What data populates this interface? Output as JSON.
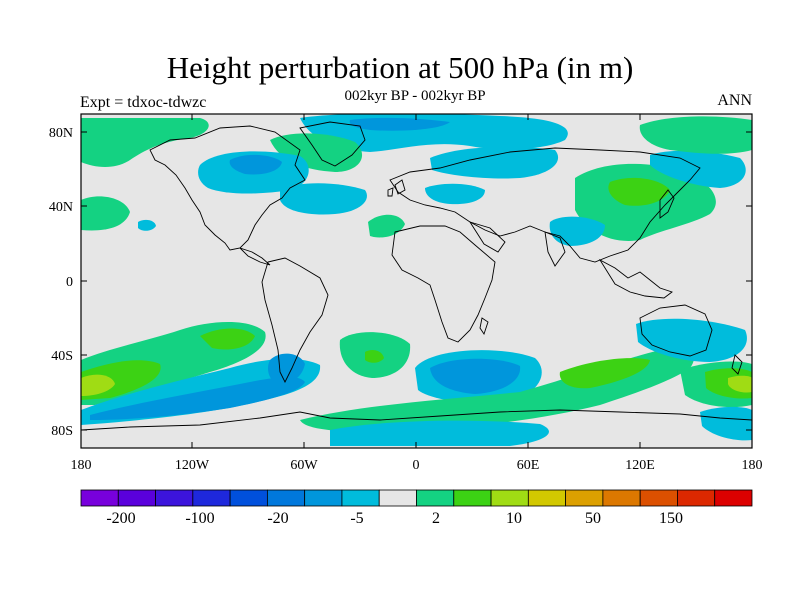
{
  "map": {
    "title": "Height perturbation at 500 hPa (in m)",
    "subtitle": "002kyr BP - 002kyr BP",
    "left_label": "Expt = tdxoc-tdwzc",
    "right_label": "ANN",
    "lat_ticks": [
      "80N",
      "40N",
      "0",
      "40S",
      "80S"
    ],
    "lon_ticks": [
      "180",
      "120W",
      "60W",
      "0",
      "60E",
      "120E",
      "180"
    ],
    "colors": {
      "background": "#e6e6e6",
      "coast": "#000000",
      "neg_light": "#00bcdc",
      "neg_mid": "#0096dc",
      "pos_light": "#14d282",
      "pos_mid": "#3cd214",
      "pos_high": "#a0dc14"
    }
  },
  "colorbar": {
    "colors": [
      "#7800dc",
      "#5a00dc",
      "#3c14dc",
      "#1e28dc",
      "#0050dc",
      "#0078dc",
      "#0096dc",
      "#00bcdc",
      "#e6e6e6",
      "#14d282",
      "#3cd214",
      "#a0dc14",
      "#d2c800",
      "#dca000",
      "#dc7800",
      "#dc5000",
      "#dc2800",
      "#dc0000"
    ],
    "labels": [
      "-200",
      "-100",
      "-20",
      "-5",
      "2",
      "10",
      "50",
      "150"
    ]
  }
}
